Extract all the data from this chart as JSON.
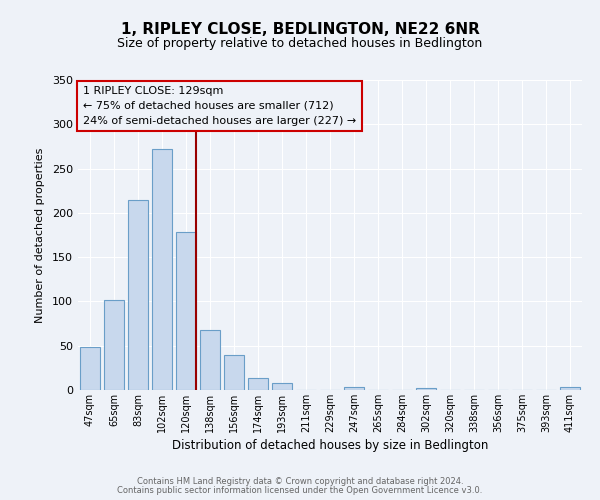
{
  "title": "1, RIPLEY CLOSE, BEDLINGTON, NE22 6NR",
  "subtitle": "Size of property relative to detached houses in Bedlington",
  "xlabel": "Distribution of detached houses by size in Bedlington",
  "ylabel": "Number of detached properties",
  "bar_labels": [
    "47sqm",
    "65sqm",
    "83sqm",
    "102sqm",
    "120sqm",
    "138sqm",
    "156sqm",
    "174sqm",
    "193sqm",
    "211sqm",
    "229sqm",
    "247sqm",
    "265sqm",
    "284sqm",
    "302sqm",
    "320sqm",
    "338sqm",
    "356sqm",
    "375sqm",
    "393sqm",
    "411sqm"
  ],
  "bar_values": [
    48,
    102,
    215,
    272,
    178,
    68,
    40,
    14,
    8,
    0,
    0,
    3,
    0,
    0,
    2,
    0,
    0,
    0,
    0,
    0,
    3
  ],
  "bar_color": "#c8d8ed",
  "bar_edge_color": "#6a9ec8",
  "vline_index": 4,
  "vline_color": "#990000",
  "annotation_title": "1 RIPLEY CLOSE: 129sqm",
  "annotation_line1": "← 75% of detached houses are smaller (712)",
  "annotation_line2": "24% of semi-detached houses are larger (227) →",
  "annotation_box_color": "#cc0000",
  "ylim": [
    0,
    350
  ],
  "yticks": [
    0,
    50,
    100,
    150,
    200,
    250,
    300,
    350
  ],
  "footer1": "Contains HM Land Registry data © Crown copyright and database right 2024.",
  "footer2": "Contains public sector information licensed under the Open Government Licence v3.0.",
  "background_color": "#eef2f8",
  "plot_bg_color": "#eef2f8",
  "grid_color": "#ffffff",
  "title_fontsize": 11,
  "subtitle_fontsize": 9
}
